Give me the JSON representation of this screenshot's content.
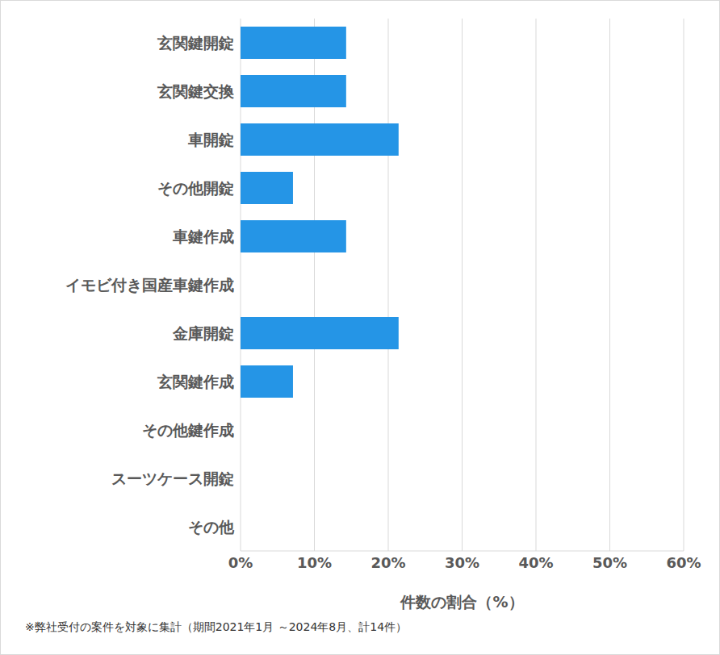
{
  "chart_data": {
    "type": "bar",
    "orientation": "horizontal",
    "categories": [
      "玄関鍵開錠",
      "玄関鍵交換",
      "車開錠",
      "その他開錠",
      "車鍵作成",
      "イモビ付き国産車鍵作成",
      "金庫開錠",
      "玄関鍵作成",
      "その他鍵作成",
      "スーツケース開錠",
      "その他"
    ],
    "values": [
      14.3,
      14.3,
      21.4,
      7.1,
      14.3,
      0,
      21.4,
      7.1,
      0,
      0,
      0
    ],
    "color": "#2595e6",
    "xlabel": "件数の割合（%）",
    "xlim": [
      0,
      60
    ],
    "xticks": [
      {
        "value": 0,
        "label": "0%"
      },
      {
        "value": 10,
        "label": "10%"
      },
      {
        "value": 20,
        "label": "20%"
      },
      {
        "value": 30,
        "label": "30%"
      },
      {
        "value": 40,
        "label": "40%"
      },
      {
        "value": 50,
        "label": "50%"
      },
      {
        "value": 60,
        "label": "60%"
      }
    ],
    "grid": true,
    "footnote": "※弊社受付の案件を対象に集計（期間2021年1月 ～2024年8月、計14件）"
  }
}
